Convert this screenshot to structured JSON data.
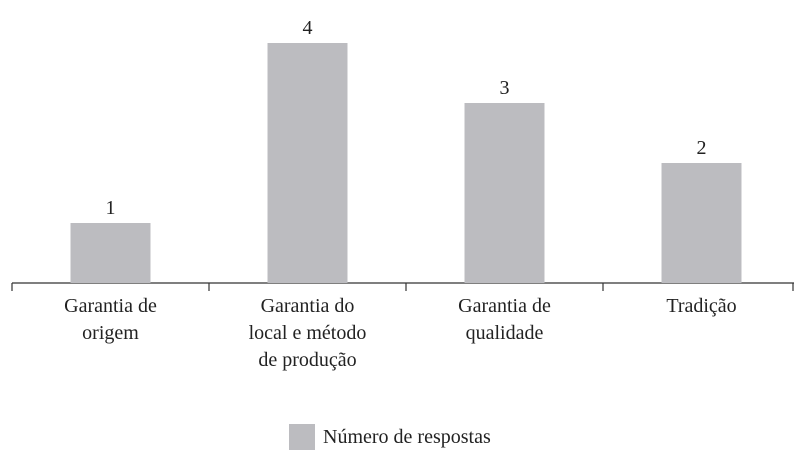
{
  "chart_data": {
    "type": "bar",
    "categories": [
      "Garantia de\norigem",
      "Garantia do\nlocal e método\nde produção",
      "Garantia de\nqualidade",
      "Tradição"
    ],
    "series": [
      {
        "name": "Número de respostas",
        "color": "#bcbcc0",
        "values": [
          1,
          4,
          3,
          2
        ]
      }
    ],
    "ylim": [
      0,
      4
    ]
  }
}
